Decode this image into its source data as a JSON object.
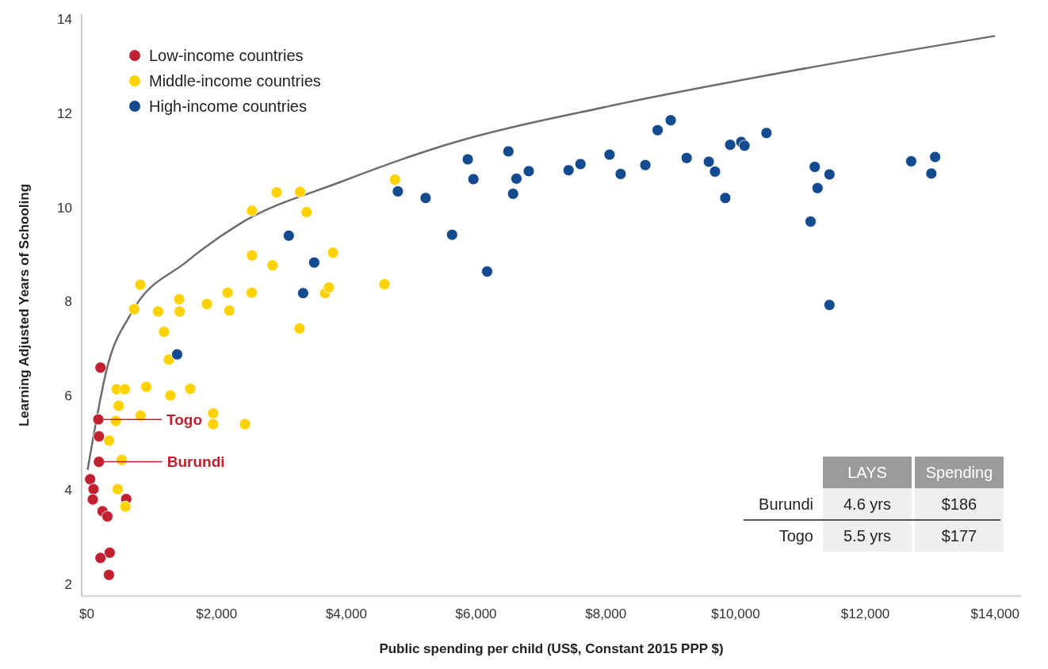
{
  "chart_data": {
    "type": "scatter",
    "xlabel": "Public spending per child (US$, Constant 2015 PPP $)",
    "ylabel": "Learning Adjusted Years of Schooling",
    "xlim": [
      -80,
      14400
    ],
    "ylim": [
      1.75,
      14.1
    ],
    "xticks": [
      {
        "value": 0,
        "label": "$0"
      },
      {
        "value": 2000,
        "label": "$2,000"
      },
      {
        "value": 4000,
        "label": "$4,000"
      },
      {
        "value": 6000,
        "label": "$6,000"
      },
      {
        "value": 8000,
        "label": "$8,000"
      },
      {
        "value": 10000,
        "label": "$10,000"
      },
      {
        "value": 12000,
        "label": "$12,000"
      },
      {
        "value": 14000,
        "label": "$14,000"
      }
    ],
    "yticks": [
      2,
      4,
      6,
      8,
      10,
      12,
      14
    ],
    "grid": false,
    "legend": "top left",
    "marker": "circle",
    "series": [
      {
        "name": "Low-income countries",
        "color": "#c0202f",
        "x": [
          210,
          177,
          187,
          186,
          51,
          103,
          92,
          607,
          242,
          317,
          353,
          210,
          341
        ],
        "values": [
          6.6,
          5.5,
          5.14,
          4.6,
          4.23,
          4.02,
          3.8,
          3.81,
          3.55,
          3.44,
          2.67,
          2.56,
          2.2
        ]
      },
      {
        "name": "Middle-income countries",
        "color": "#ffd200",
        "x": [
          825,
          730,
          1098,
          1424,
          1431,
          1190,
          1852,
          2169,
          2197,
          2542,
          2863,
          3279,
          3672,
          3731,
          1265,
          460,
          587,
          916,
          1288,
          1594,
          491,
          829,
          448,
          1947,
          1947,
          2438,
          345,
          539,
          476,
          595,
          2926,
          3287,
          2546,
          3386,
          2546,
          3794,
          4588,
          4750
        ],
        "values": [
          8.36,
          7.84,
          7.79,
          8.05,
          7.79,
          7.36,
          7.95,
          8.19,
          7.81,
          8.19,
          8.77,
          7.43,
          8.18,
          8.3,
          6.77,
          6.14,
          6.14,
          6.19,
          6.01,
          6.15,
          5.79,
          5.58,
          5.47,
          5.63,
          5.4,
          5.4,
          5.05,
          4.64,
          4.02,
          3.65,
          10.32,
          10.33,
          9.93,
          9.9,
          8.98,
          9.04,
          8.37,
          10.59
        ]
      },
      {
        "name": "High-income countries",
        "color": "#134b8e",
        "x": [
          1392,
          3334,
          3505,
          3113,
          4794,
          5222,
          5630,
          6170,
          5872,
          5959,
          6498,
          6570,
          6622,
          6812,
          7426,
          7609,
          8057,
          8228,
          8609,
          8798,
          9000,
          9246,
          9587,
          9683,
          9841,
          9917,
          10087,
          10138,
          10476,
          11220,
          11447,
          11263,
          11156,
          11447,
          12707,
          13076,
          13017
        ],
        "values": [
          6.88,
          8.18,
          8.83,
          9.4,
          10.34,
          10.2,
          9.42,
          8.64,
          11.02,
          10.6,
          11.19,
          10.29,
          10.61,
          10.77,
          10.79,
          10.92,
          11.12,
          10.71,
          10.9,
          11.64,
          11.85,
          11.05,
          10.97,
          10.76,
          10.2,
          11.33,
          11.39,
          11.31,
          11.58,
          10.86,
          10.7,
          10.41,
          9.7,
          7.93,
          10.98,
          11.07,
          10.72
        ]
      },
      {
        "type": "line",
        "color": "#6d6d6d",
        "marker": "none",
        "line_style": "solid",
        "x": [
          12,
          321,
          678,
          1531,
          2343,
          3929,
          5516,
          8053,
          10669,
          14000
        ],
        "values": [
          4.43,
          6.64,
          7.74,
          8.84,
          9.64,
          10.55,
          11.32,
          12.15,
          12.85,
          13.64
        ]
      }
    ],
    "annotations": [
      "Togo",
      "Burundi",
      "LAYS",
      "Spending",
      "Burundi",
      "4.6 yrs",
      "$186",
      "Togo",
      "5.5 yrs",
      "$177"
    ]
  }
}
